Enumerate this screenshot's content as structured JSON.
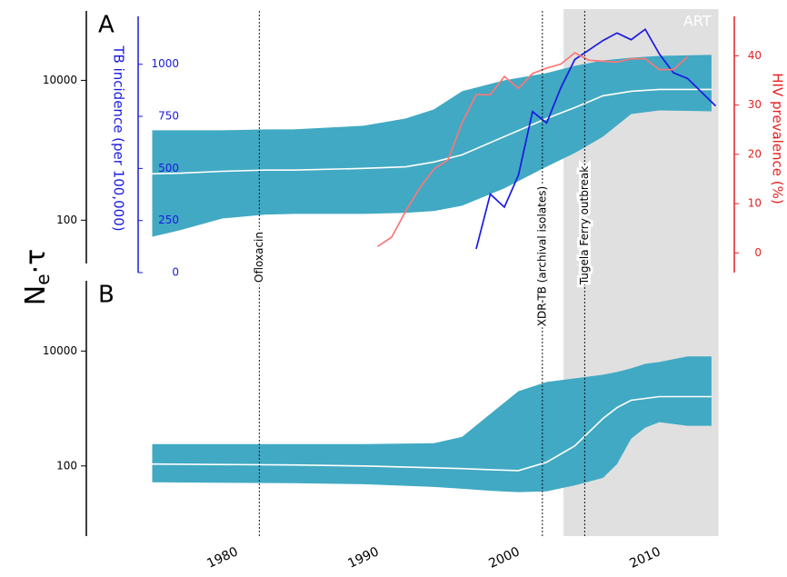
{
  "chart_data": {
    "type": "band-panels",
    "ylabel_main": "N",
    "ylabel_sub": "e",
    "ylabel_rest": "·τ",
    "xlim": [
      1970,
      2016
    ],
    "xticks": [
      1980,
      1990,
      2000,
      2010
    ],
    "shade": {
      "xlim": [
        2004.2,
        2015.2
      ],
      "label": "ART",
      "color": "#e0e0e0"
    },
    "events": [
      {
        "x": 1982.6,
        "label": "Ofloxacin"
      },
      {
        "x": 2002.7,
        "label": "XDR-TB (archival isolates)"
      },
      {
        "x": 2005.7,
        "label": "Tugela Ferry outbreak"
      }
    ],
    "panels": [
      {
        "label": "A",
        "ylog": true,
        "ylim": [
          24,
          90000
        ],
        "yticks": [
          100,
          10000
        ],
        "color": "#41a9c3",
        "median_color": "#ffffff",
        "x": [
          1975,
          1977,
          1980,
          1983,
          1985,
          1990,
          1993,
          1995,
          1997,
          2000,
          2003,
          2005,
          2007,
          2009,
          2011,
          2014.7
        ],
        "lower": [
          58,
          72,
          106,
          120,
          123,
          123,
          127,
          135,
          161,
          285,
          583,
          914,
          1567,
          3300,
          3720,
          3610
        ],
        "median": [
          460,
          470,
          500,
          520,
          520,
          550,
          580,
          680,
          860,
          1570,
          2850,
          4080,
          6010,
          6980,
          7410,
          7410
        ],
        "upper": [
          1930,
          1930,
          1930,
          1990,
          1990,
          2240,
          2850,
          3840,
          6980,
          10000,
          12700,
          16100,
          19300,
          21100,
          22400,
          23100
        ],
        "overlays": [
          {
            "label": "TB incidence (per 100,000)",
            "side": "left",
            "color": "#1a1ae0",
            "ylim": [
              0,
              1230
            ],
            "yticks": [
              0,
              250,
              500,
              750,
              1000
            ],
            "x": [
              1998,
              1999,
              2000,
              2001,
              2002,
              2003,
              2004,
              2005,
              2006,
              2007,
              2008,
              2009,
              2010,
              2011,
              2012,
              2013,
              2015
            ],
            "values": [
              114,
              377,
              314,
              468,
              773,
              718,
              886,
              1023,
              1068,
              1114,
              1150,
              1118,
              1168,
              1050,
              959,
              932,
              800
            ]
          },
          {
            "label": "HIV prevalence (%)",
            "side": "right",
            "color": "#e52020",
            "line_color": "#f87878",
            "ylim": [
              -4,
              48
            ],
            "yticks": [
              0,
              10,
              20,
              30,
              40
            ],
            "x": [
              1991,
              1992,
              1993,
              1994,
              1995,
              1996,
              1997,
              1998,
              1999,
              2000,
              2001,
              2002,
              2003,
              2004,
              2005,
              2006,
              2007,
              2008,
              2009,
              2010,
              2011,
              2012,
              2013
            ],
            "values": [
              1.3,
              3.2,
              8.5,
              13.2,
              17.0,
              18.9,
              26.4,
              32.1,
              32.1,
              35.8,
              33.4,
              36.4,
              37.5,
              38.3,
              40.6,
              39.1,
              38.9,
              38.7,
              39.4,
              39.4,
              37.2,
              37.2,
              39.8
            ]
          }
        ]
      },
      {
        "label": "B",
        "ylog": true,
        "ylim": [
          6,
          150000
        ],
        "yticks": [
          100,
          10000
        ],
        "color": "#41a9c3",
        "median_color": "#ffffff",
        "x": [
          1975,
          1985,
          1990,
          1995,
          1997,
          1999,
          2001,
          2003,
          2005,
          2007,
          2008,
          2009,
          2010,
          2011,
          2013,
          2014.7
        ],
        "lower": [
          52,
          50,
          48,
          43,
          40,
          37,
          35,
          36,
          46,
          62,
          108,
          299,
          464,
          578,
          499,
          499
        ],
        "median": [
          108,
          104,
          100,
          93,
          90,
          86,
          83,
          116,
          223,
          668,
          1037,
          1390,
          1496,
          1608,
          1608,
          1608
        ],
        "upper": [
          240,
          240,
          240,
          249,
          322,
          804,
          2005,
          2887,
          3340,
          3867,
          4315,
          4993,
          5995,
          6450,
          8040,
          8040
        ],
        "overlays": []
      }
    ]
  }
}
